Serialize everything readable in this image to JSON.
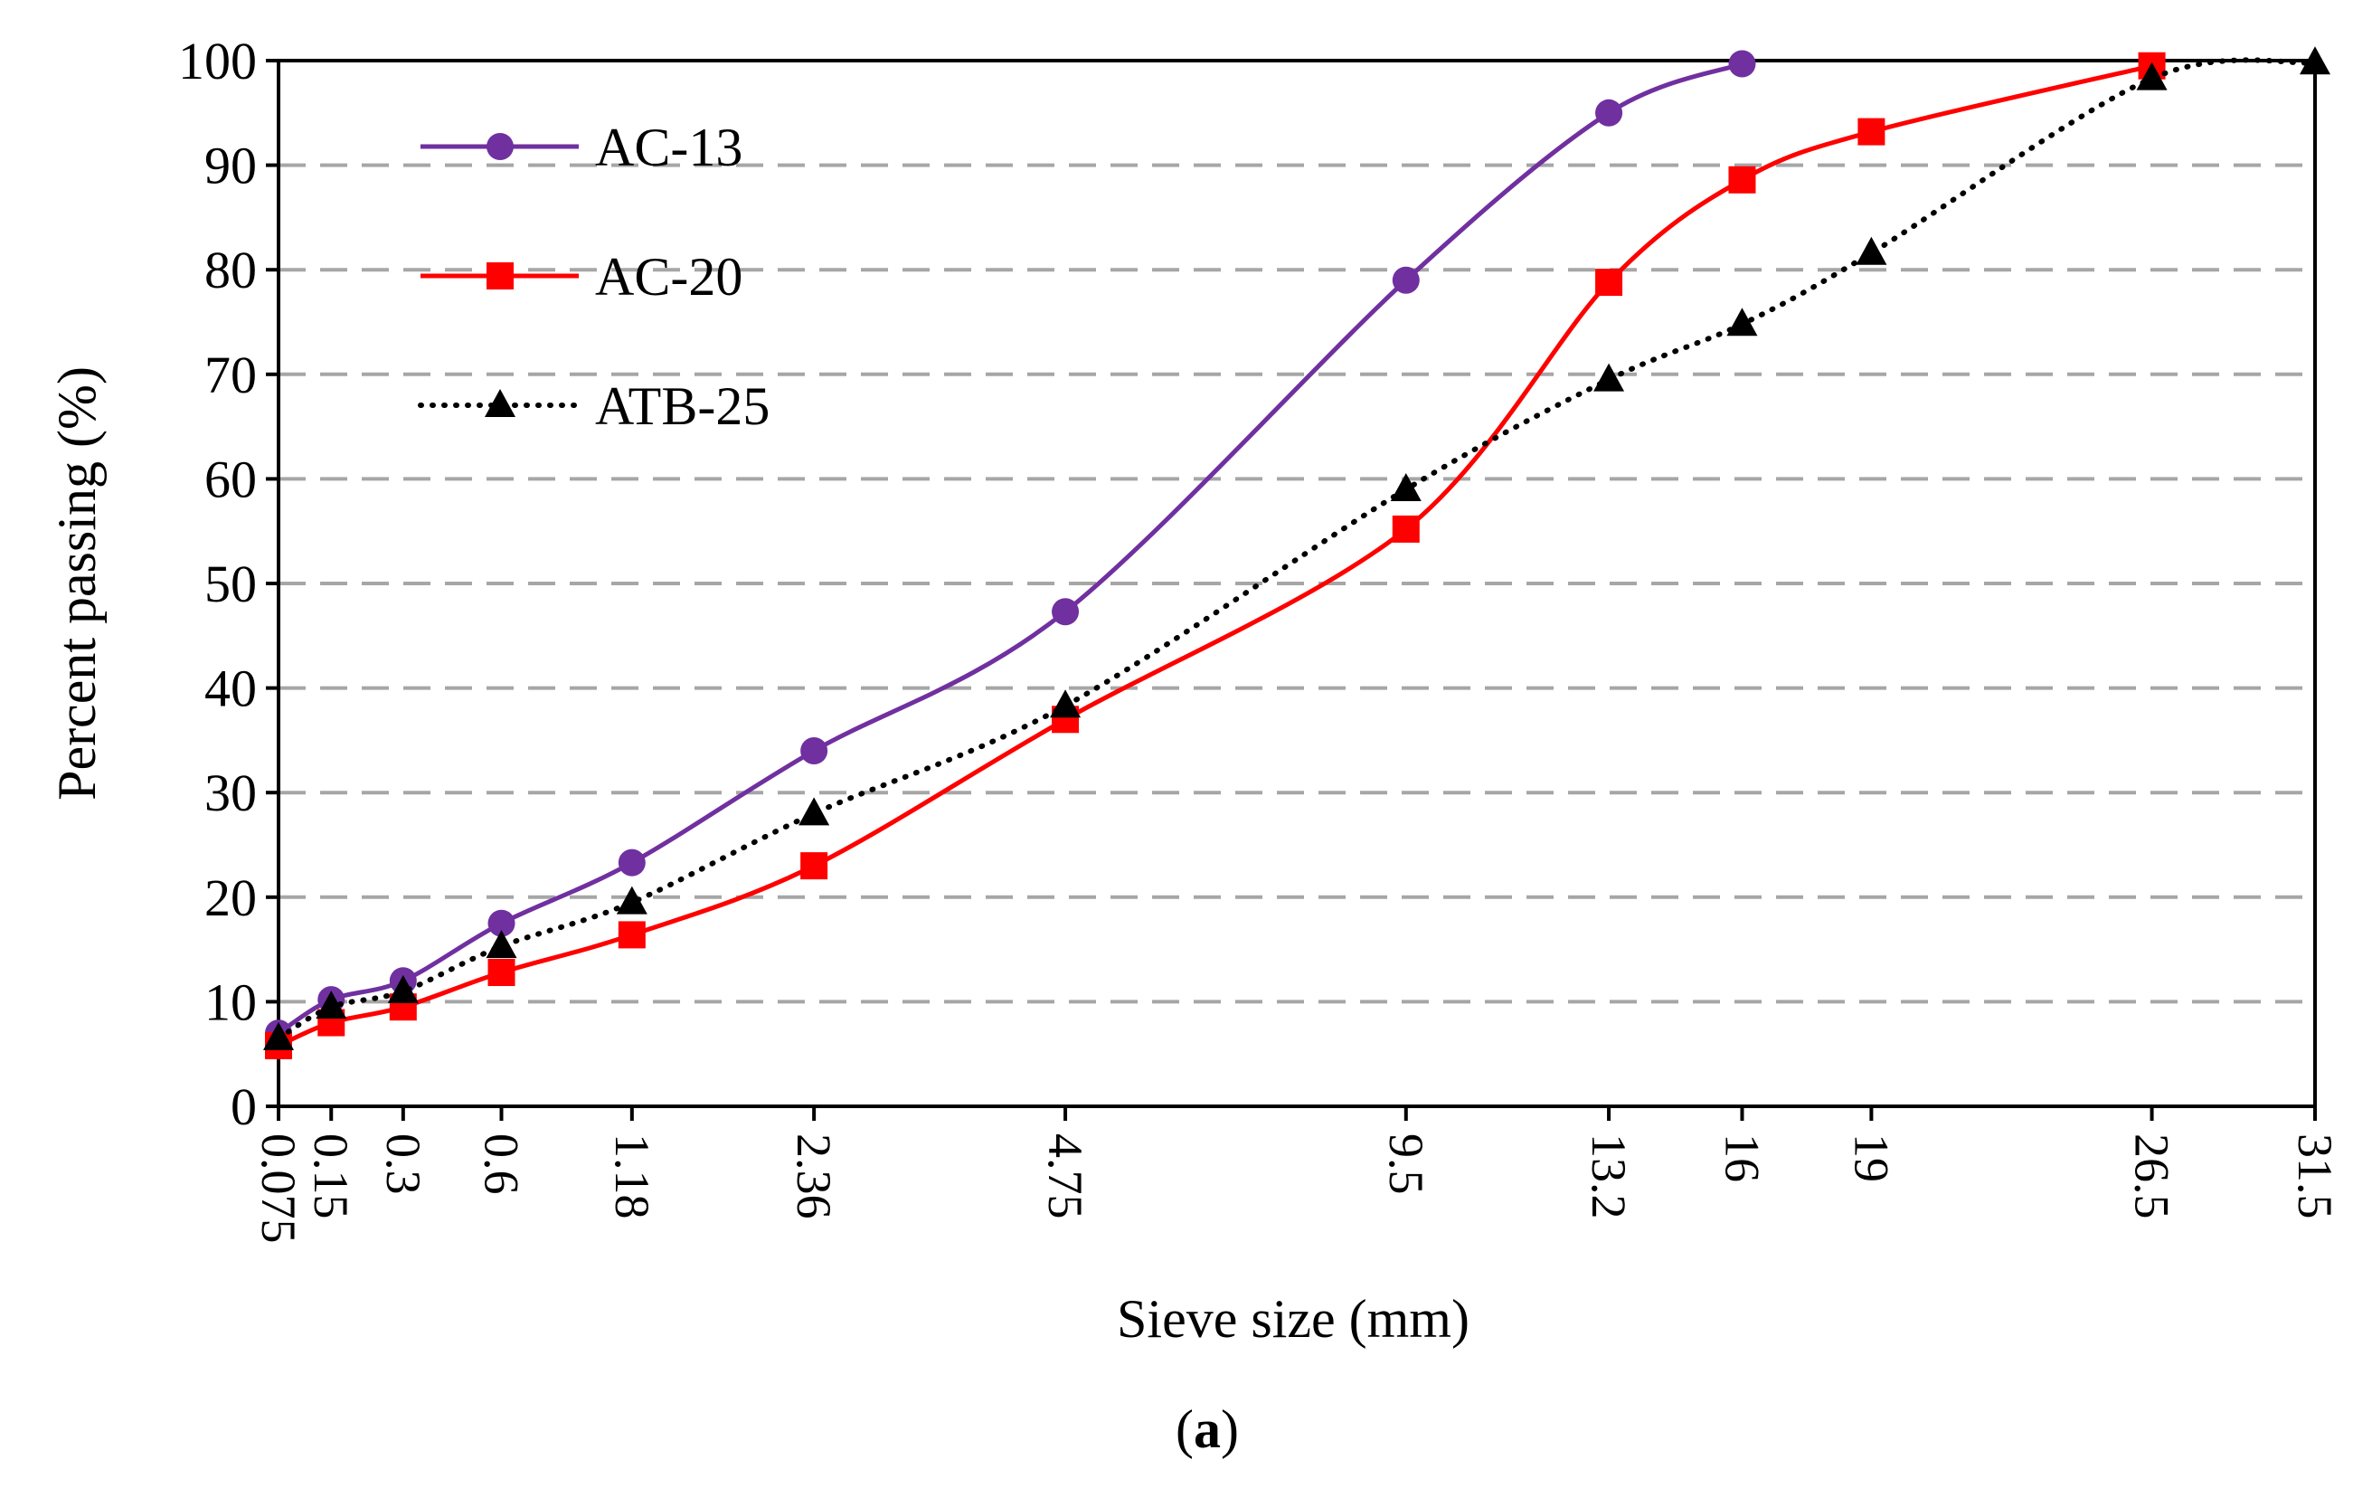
{
  "chart_data": {
    "type": "line",
    "title": "",
    "xlabel": "Sieve size (mm)",
    "ylabel": "Percent passing (%)",
    "categories": [
      "0.075",
      "0.15",
      "0.3",
      "0.6",
      "1.18",
      "2.36",
      "4.75",
      "9.5",
      "13.2",
      "16",
      "19",
      "26.5",
      "31.5"
    ],
    "x_scale": "power 0.45",
    "ylim": [
      0,
      100
    ],
    "yticks": [
      0,
      10,
      20,
      30,
      40,
      50,
      60,
      70,
      80,
      90,
      100
    ],
    "grid": "horizontal dashed",
    "legend_position": "top-left",
    "series": [
      {
        "name": "AC-13",
        "color": "#7030A0",
        "marker": "circle",
        "line_style": "solid",
        "x": [
          0.075,
          0.15,
          0.3,
          0.6,
          1.18,
          2.36,
          4.75,
          9.5,
          13.2,
          16
        ],
        "values": [
          7,
          10.2,
          12,
          17.5,
          23.3,
          34,
          47.3,
          79,
          95,
          99.7
        ]
      },
      {
        "name": "AC-20",
        "color": "#FF0000",
        "marker": "square",
        "line_style": "solid",
        "x": [
          0.075,
          0.15,
          0.3,
          0.6,
          1.18,
          2.36,
          4.75,
          9.5,
          13.2,
          16,
          19,
          26.5
        ],
        "values": [
          5.8,
          8,
          9.5,
          12.8,
          16.4,
          23,
          37,
          55.2,
          78.8,
          88.6,
          93.2,
          99.5
        ]
      },
      {
        "name": "ATB-25",
        "color": "#000000",
        "marker": "triangle",
        "line_style": "dotted",
        "x": [
          0.075,
          0.15,
          0.3,
          0.6,
          1.18,
          2.36,
          4.75,
          9.5,
          13.2,
          16,
          19,
          26.5,
          31.5
        ],
        "values": [
          6.5,
          9.5,
          11,
          15.3,
          19.5,
          28,
          38.3,
          59,
          69.5,
          74.8,
          81.6,
          98.3,
          99.8
        ]
      }
    ]
  },
  "caption": {
    "open": "(",
    "label": "a",
    "close": ")"
  }
}
